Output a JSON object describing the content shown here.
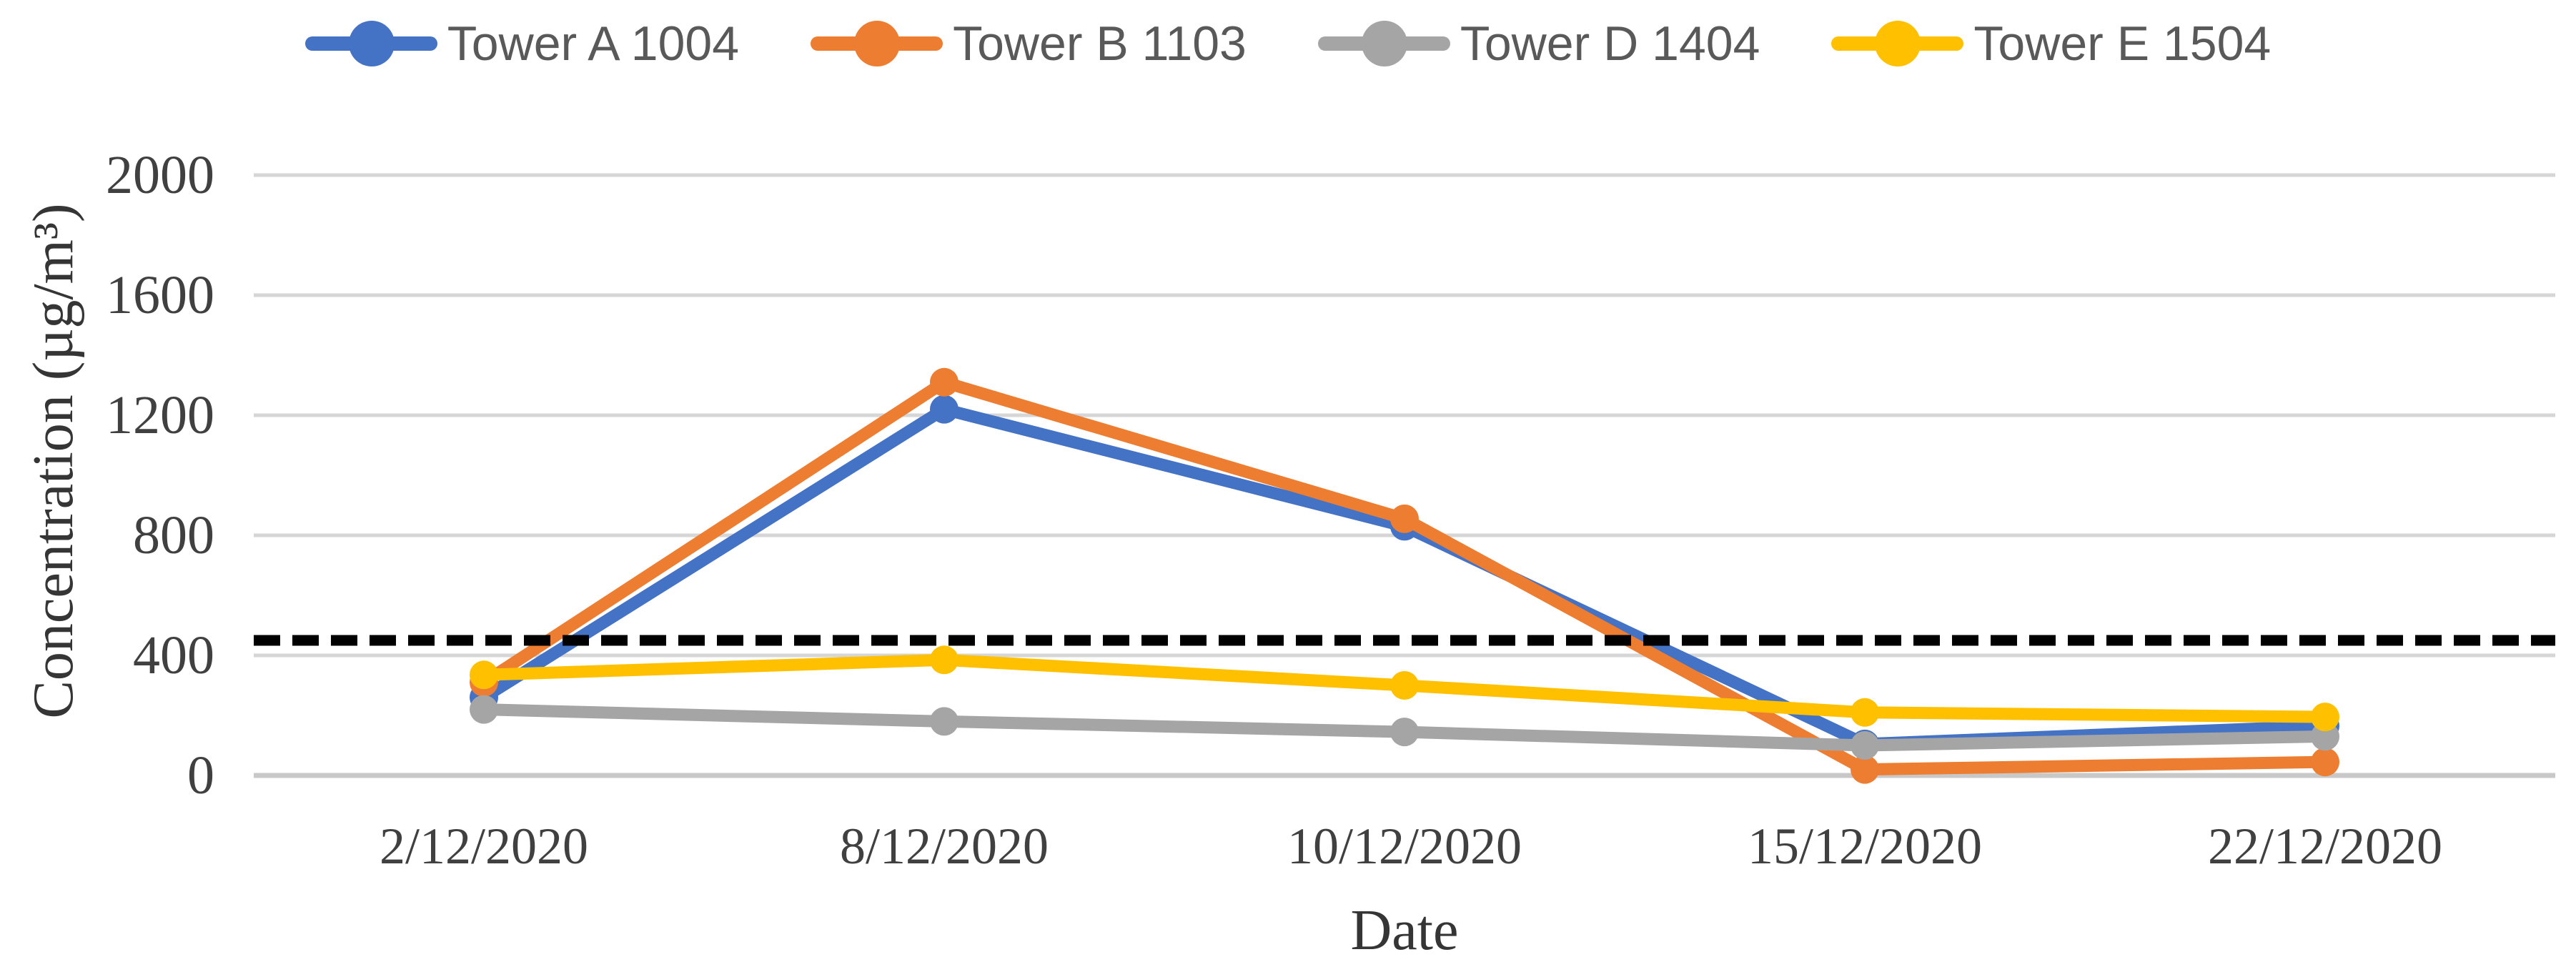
{
  "chart_data": {
    "type": "line",
    "title": "",
    "xlabel": "Date",
    "ylabel": "Concentration (µg/m³)",
    "categories": [
      "2/12/2020",
      "8/12/2020",
      "10/12/2020",
      "15/12/2020",
      "22/12/2020"
    ],
    "series": [
      {
        "name": "Tower A 1004",
        "color": "#4472C4",
        "values": [
          260,
          1220,
          830,
          105,
          165
        ]
      },
      {
        "name": "Tower B 1103",
        "color": "#ED7D31",
        "values": [
          310,
          1310,
          855,
          20,
          45
        ]
      },
      {
        "name": "Tower D 1404",
        "color": "#A5A5A5",
        "values": [
          220,
          180,
          145,
          100,
          130
        ]
      },
      {
        "name": "Tower E 1504",
        "color": "#FFC000",
        "values": [
          335,
          385,
          300,
          210,
          195
        ]
      }
    ],
    "threshold": {
      "value": 450,
      "color": "#000000",
      "style": "dashed"
    },
    "ylim": [
      0,
      2000
    ],
    "yticks": [
      0,
      400,
      800,
      1200,
      1600,
      2000
    ],
    "grid": "horizontal",
    "gridline_color": "#D6D6D6",
    "axis_line_color": "#C8C8C8",
    "legend_position": "top"
  }
}
